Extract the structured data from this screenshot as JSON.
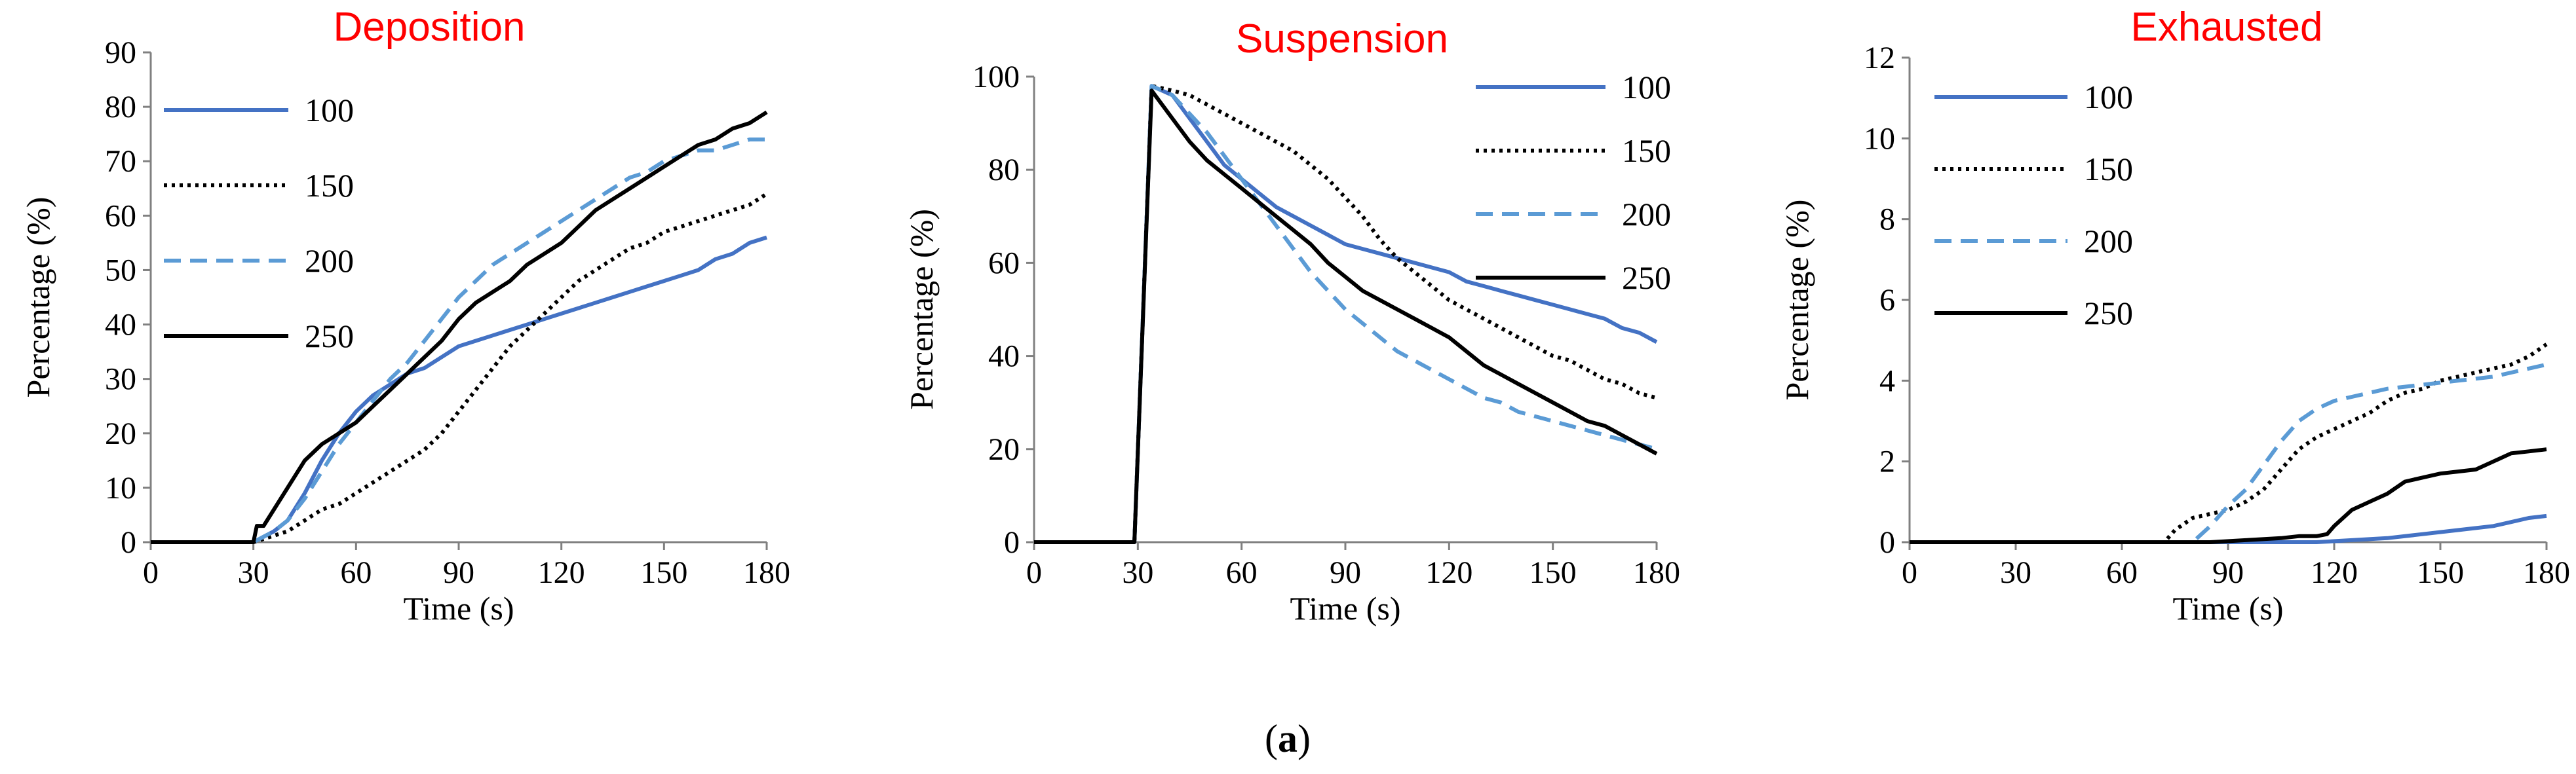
{
  "caption": {
    "open": "(",
    "letter": "a",
    "close": ")"
  },
  "colors": {
    "title": "#ff0000",
    "blue": "#4472c4",
    "lightblue": "#5b9bd5",
    "black": "#000000",
    "axis": "#808080"
  },
  "chart_data": [
    {
      "type": "line",
      "title": "Deposition",
      "xlabel": "Time (s)",
      "ylabel": "Percentage (%)",
      "xlim": [
        0,
        180
      ],
      "ylim": [
        0,
        90
      ],
      "xticks": [
        0,
        30,
        60,
        90,
        120,
        150,
        180
      ],
      "yticks": [
        0,
        10,
        20,
        30,
        40,
        50,
        60,
        70,
        80,
        90
      ],
      "legend_position": "top-left",
      "series": [
        {
          "name": "100",
          "color": "#4472c4",
          "dash": "solid",
          "x": [
            0,
            30,
            33,
            36,
            40,
            45,
            50,
            55,
            60,
            65,
            70,
            75,
            80,
            85,
            90,
            95,
            100,
            105,
            110,
            115,
            120,
            125,
            130,
            135,
            140,
            145,
            150,
            155,
            160,
            165,
            170,
            175,
            180
          ],
          "y": [
            0,
            0,
            1,
            2,
            4,
            9,
            15,
            20,
            24,
            27,
            29,
            31,
            32,
            34,
            36,
            37,
            38,
            39,
            40,
            41,
            42,
            43,
            44,
            45,
            46,
            47,
            48,
            49,
            50,
            52,
            53,
            55,
            56
          ]
        },
        {
          "name": "150",
          "color": "#000000",
          "dash": "dot",
          "x": [
            0,
            30,
            35,
            40,
            45,
            50,
            55,
            60,
            65,
            70,
            75,
            80,
            85,
            90,
            95,
            100,
            105,
            110,
            115,
            120,
            125,
            130,
            135,
            140,
            145,
            150,
            155,
            160,
            165,
            170,
            175,
            180
          ],
          "y": [
            0,
            0,
            1,
            2,
            4,
            6,
            7,
            9,
            11,
            13,
            15,
            17,
            20,
            24,
            28,
            32,
            36,
            39,
            42,
            45,
            48,
            50,
            52,
            54,
            55,
            57,
            58,
            59,
            60,
            61,
            62,
            64
          ]
        },
        {
          "name": "200",
          "color": "#5b9bd5",
          "dash": "dash",
          "x": [
            0,
            30,
            33,
            36,
            40,
            45,
            50,
            55,
            60,
            65,
            70,
            75,
            80,
            85,
            90,
            95,
            100,
            105,
            110,
            115,
            120,
            125,
            130,
            135,
            140,
            145,
            150,
            155,
            160,
            165,
            170,
            175,
            180
          ],
          "y": [
            0,
            0,
            1,
            2,
            4,
            8,
            13,
            18,
            22,
            26,
            30,
            33,
            37,
            41,
            45,
            48,
            51,
            53,
            55,
            57,
            59,
            61,
            63,
            65,
            67,
            68,
            70,
            71,
            72,
            72,
            73,
            74,
            74
          ]
        },
        {
          "name": "250",
          "color": "#000000",
          "dash": "solid",
          "x": [
            0,
            30,
            31,
            33,
            36,
            40,
            45,
            50,
            55,
            60,
            65,
            70,
            75,
            80,
            85,
            90,
            95,
            100,
            105,
            110,
            115,
            120,
            125,
            130,
            135,
            140,
            145,
            150,
            155,
            160,
            165,
            170,
            175,
            180
          ],
          "y": [
            0,
            0,
            3,
            3,
            6,
            10,
            15,
            18,
            20,
            22,
            25,
            28,
            31,
            34,
            37,
            41,
            44,
            46,
            48,
            51,
            53,
            55,
            58,
            61,
            63,
            65,
            67,
            69,
            71,
            73,
            74,
            76,
            77,
            79
          ]
        }
      ]
    },
    {
      "type": "line",
      "title": "Suspension",
      "xlabel": "Time (s)",
      "ylabel": "Percentage (%)",
      "xlim": [
        0,
        180
      ],
      "ylim": [
        0,
        100
      ],
      "xticks": [
        0,
        30,
        60,
        90,
        120,
        150,
        180
      ],
      "yticks": [
        0,
        20,
        40,
        60,
        80,
        100
      ],
      "legend_position": "top-right",
      "series": [
        {
          "name": "100",
          "color": "#4472c4",
          "dash": "solid",
          "x": [
            0,
            29,
            34,
            40,
            45,
            50,
            55,
            60,
            65,
            70,
            75,
            80,
            85,
            90,
            95,
            100,
            105,
            110,
            115,
            120,
            125,
            130,
            135,
            140,
            145,
            150,
            155,
            160,
            165,
            170,
            175,
            180
          ],
          "y": [
            0,
            0,
            98,
            96,
            91,
            86,
            81,
            78,
            75,
            72,
            70,
            68,
            66,
            64,
            63,
            62,
            61,
            60,
            59,
            58,
            56,
            55,
            54,
            53,
            52,
            51,
            50,
            49,
            48,
            46,
            45,
            43
          ]
        },
        {
          "name": "150",
          "color": "#000000",
          "dash": "dot",
          "x": [
            0,
            29,
            34,
            40,
            45,
            50,
            55,
            60,
            65,
            70,
            75,
            80,
            85,
            90,
            95,
            100,
            105,
            110,
            115,
            120,
            125,
            130,
            135,
            140,
            145,
            150,
            155,
            160,
            165,
            170,
            175,
            180
          ],
          "y": [
            0,
            0,
            98,
            97,
            96,
            94,
            92,
            90,
            88,
            86,
            84,
            81,
            78,
            74,
            70,
            65,
            61,
            58,
            55,
            52,
            50,
            48,
            46,
            44,
            42,
            40,
            39,
            37,
            35,
            34,
            32,
            31
          ]
        },
        {
          "name": "200",
          "color": "#5b9bd5",
          "dash": "dash",
          "x": [
            0,
            29,
            34,
            40,
            45,
            50,
            55,
            60,
            65,
            70,
            75,
            80,
            85,
            90,
            95,
            100,
            105,
            110,
            115,
            120,
            125,
            130,
            135,
            140,
            145,
            150,
            155,
            160,
            165,
            170,
            175,
            180
          ],
          "y": [
            0,
            0,
            98,
            96,
            92,
            88,
            83,
            78,
            73,
            68,
            63,
            58,
            54,
            50,
            47,
            44,
            41,
            39,
            37,
            35,
            33,
            31,
            30,
            28,
            27,
            26,
            25,
            24,
            23,
            22,
            21,
            20
          ]
        },
        {
          "name": "250",
          "color": "#000000",
          "dash": "solid",
          "x": [
            0,
            29,
            34,
            40,
            45,
            50,
            55,
            60,
            65,
            70,
            75,
            80,
            85,
            90,
            95,
            100,
            105,
            110,
            115,
            120,
            125,
            130,
            135,
            140,
            145,
            150,
            155,
            160,
            165,
            170,
            175,
            180
          ],
          "y": [
            0,
            0,
            97,
            91,
            86,
            82,
            79,
            76,
            73,
            70,
            67,
            64,
            60,
            57,
            54,
            52,
            50,
            48,
            46,
            44,
            41,
            38,
            36,
            34,
            32,
            30,
            28,
            26,
            25,
            23,
            21,
            19
          ]
        }
      ]
    },
    {
      "type": "line",
      "title": "Exhausted",
      "xlabel": "Time (s)",
      "ylabel": "Percentage (%)",
      "xlim": [
        0,
        180
      ],
      "ylim": [
        0,
        12
      ],
      "xticks": [
        0,
        30,
        60,
        90,
        120,
        150,
        180
      ],
      "yticks": [
        0,
        2,
        4,
        6,
        8,
        10,
        12
      ],
      "legend_position": "top-left",
      "series": [
        {
          "name": "100",
          "color": "#4472c4",
          "dash": "solid",
          "x": [
            0,
            115,
            125,
            135,
            145,
            155,
            165,
            170,
            175,
            180
          ],
          "y": [
            0,
            0,
            0.05,
            0.1,
            0.2,
            0.3,
            0.4,
            0.5,
            0.6,
            0.65
          ]
        },
        {
          "name": "150",
          "color": "#000000",
          "dash": "dot",
          "x": [
            0,
            72,
            75,
            80,
            85,
            90,
            95,
            100,
            105,
            110,
            115,
            120,
            125,
            130,
            135,
            140,
            145,
            150,
            155,
            160,
            165,
            170,
            175,
            180
          ],
          "y": [
            0,
            0,
            0.3,
            0.6,
            0.7,
            0.8,
            1.0,
            1.3,
            1.8,
            2.3,
            2.6,
            2.8,
            3.0,
            3.2,
            3.5,
            3.7,
            3.8,
            4.0,
            4.1,
            4.2,
            4.3,
            4.4,
            4.6,
            4.9
          ]
        },
        {
          "name": "200",
          "color": "#5b9bd5",
          "dash": "dash",
          "x": [
            0,
            80,
            85,
            90,
            95,
            100,
            105,
            110,
            115,
            120,
            125,
            130,
            135,
            140,
            145,
            150,
            155,
            160,
            165,
            170,
            175,
            180
          ],
          "y": [
            0,
            0,
            0.4,
            0.9,
            1.3,
            1.9,
            2.5,
            3.0,
            3.3,
            3.5,
            3.6,
            3.7,
            3.8,
            3.85,
            3.9,
            3.95,
            4.0,
            4.05,
            4.1,
            4.2,
            4.3,
            4.4
          ]
        },
        {
          "name": "250",
          "color": "#000000",
          "dash": "solid",
          "x": [
            0,
            85,
            95,
            105,
            110,
            115,
            118,
            120,
            125,
            130,
            135,
            140,
            145,
            150,
            155,
            160,
            165,
            170,
            175,
            180
          ],
          "y": [
            0,
            0,
            0.05,
            0.1,
            0.15,
            0.15,
            0.2,
            0.4,
            0.8,
            1.0,
            1.2,
            1.5,
            1.6,
            1.7,
            1.75,
            1.8,
            2.0,
            2.2,
            2.25,
            2.3
          ]
        }
      ]
    }
  ]
}
